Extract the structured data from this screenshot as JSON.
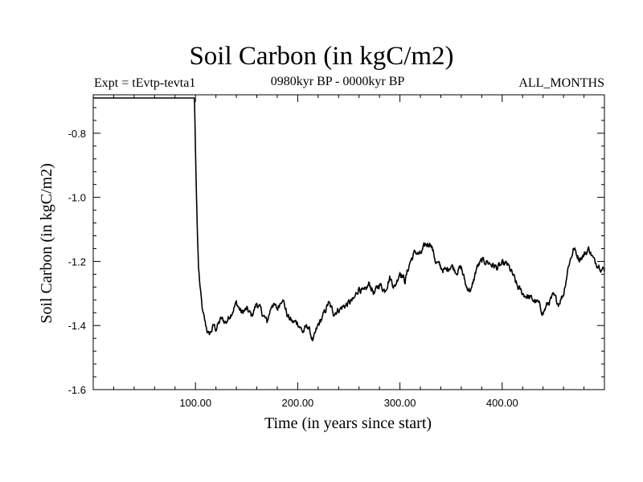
{
  "chart_data": {
    "type": "line",
    "title": "Soil Carbon (in kgC/m2)",
    "subtitle_left": "Expt = tEvtp-tevta1",
    "subtitle_center": "0980kyr BP - 0000kyr BP",
    "subtitle_right": "ALL_MONTHS",
    "xlabel": "Time (in years since start)",
    "ylabel": "Soil Carbon (in kgC/m2)",
    "xlim": [
      0,
      500
    ],
    "ylim": [
      -1.6,
      -0.68
    ],
    "xticks": [
      100,
      200,
      300,
      400
    ],
    "xtick_labels": [
      "100.00",
      "200.00",
      "300.00",
      "400.00"
    ],
    "yticks": [
      -0.8,
      -1.0,
      -1.2,
      -1.4,
      -1.6
    ],
    "ytick_labels": [
      "-0.8",
      "-1.0",
      "-1.2",
      "-1.4",
      "-1.6"
    ],
    "grid": false,
    "series": [
      {
        "name": "Soil Carbon",
        "color": "#000000",
        "x": [
          0,
          99,
          100,
          101,
          102,
          103,
          105,
          107,
          110,
          113,
          115,
          118,
          120,
          125,
          130,
          135,
          140,
          145,
          150,
          155,
          160,
          165,
          170,
          175,
          180,
          185,
          190,
          195,
          200,
          205,
          210,
          215,
          220,
          225,
          230,
          235,
          240,
          245,
          250,
          255,
          260,
          265,
          270,
          275,
          280,
          285,
          290,
          295,
          300,
          305,
          310,
          315,
          320,
          325,
          330,
          335,
          340,
          345,
          350,
          355,
          360,
          365,
          370,
          375,
          380,
          385,
          390,
          395,
          400,
          405,
          410,
          415,
          420,
          425,
          430,
          435,
          440,
          445,
          450,
          455,
          460,
          465,
          470,
          475,
          480,
          485,
          490,
          495,
          500
        ],
        "y": [
          -0.69,
          -0.69,
          -0.85,
          -1.0,
          -1.12,
          -1.22,
          -1.3,
          -1.36,
          -1.4,
          -1.43,
          -1.42,
          -1.4,
          -1.41,
          -1.38,
          -1.39,
          -1.36,
          -1.33,
          -1.36,
          -1.35,
          -1.37,
          -1.33,
          -1.36,
          -1.39,
          -1.33,
          -1.35,
          -1.31,
          -1.37,
          -1.39,
          -1.39,
          -1.42,
          -1.4,
          -1.45,
          -1.4,
          -1.37,
          -1.33,
          -1.36,
          -1.35,
          -1.34,
          -1.33,
          -1.32,
          -1.28,
          -1.3,
          -1.27,
          -1.3,
          -1.27,
          -1.29,
          -1.25,
          -1.28,
          -1.23,
          -1.26,
          -1.2,
          -1.17,
          -1.18,
          -1.15,
          -1.14,
          -1.2,
          -1.22,
          -1.23,
          -1.21,
          -1.23,
          -1.22,
          -1.28,
          -1.29,
          -1.22,
          -1.2,
          -1.2,
          -1.21,
          -1.22,
          -1.21,
          -1.21,
          -1.24,
          -1.28,
          -1.3,
          -1.31,
          -1.32,
          -1.33,
          -1.36,
          -1.33,
          -1.31,
          -1.33,
          -1.3,
          -1.21,
          -1.16,
          -1.19,
          -1.18,
          -1.16,
          -1.2,
          -1.21,
          -1.23
        ]
      }
    ]
  }
}
